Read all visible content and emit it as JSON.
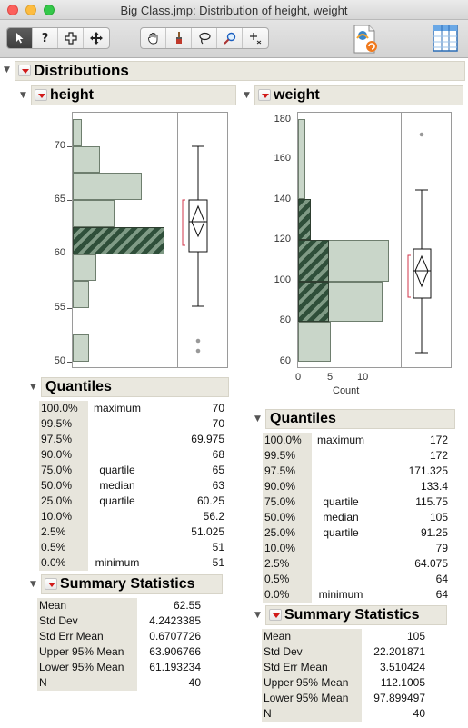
{
  "window": {
    "title": "Big Class.jmp: Distribution of height, weight"
  },
  "toolbar": {
    "tools": [
      {
        "name": "arrow-tool",
        "glyph": "▲"
      },
      {
        "name": "help-tool",
        "glyph": "?"
      },
      {
        "name": "selection-tool",
        "glyph": "✚"
      },
      {
        "name": "move-tool",
        "glyph": "✥"
      },
      {
        "name": "grabber-tool",
        "glyph": "✋"
      },
      {
        "name": "brush-tool",
        "glyph": "✐"
      },
      {
        "name": "lasso-tool",
        "glyph": "➰"
      },
      {
        "name": "magnifier-tool",
        "glyph": "⌕"
      },
      {
        "name": "crosshair-tool",
        "glyph": "+"
      }
    ]
  },
  "report": {
    "title": "Distributions"
  },
  "height": {
    "title": "height",
    "axis_ticks": [
      "70",
      "65",
      "60",
      "55",
      "50"
    ],
    "quantiles_title": "Quantiles",
    "quantiles": [
      {
        "pct": "100.0%",
        "label": "maximum",
        "value": "70"
      },
      {
        "pct": "99.5%",
        "label": "",
        "value": "70"
      },
      {
        "pct": "97.5%",
        "label": "",
        "value": "69.975"
      },
      {
        "pct": "90.0%",
        "label": "",
        "value": "68"
      },
      {
        "pct": "75.0%",
        "label": "quartile",
        "value": "65"
      },
      {
        "pct": "50.0%",
        "label": "median",
        "value": "63"
      },
      {
        "pct": "25.0%",
        "label": "quartile",
        "value": "60.25"
      },
      {
        "pct": "10.0%",
        "label": "",
        "value": "56.2"
      },
      {
        "pct": "2.5%",
        "label": "",
        "value": "51.025"
      },
      {
        "pct": "0.5%",
        "label": "",
        "value": "51"
      },
      {
        "pct": "0.0%",
        "label": "minimum",
        "value": "51"
      }
    ],
    "summary_title": "Summary Statistics",
    "summary": [
      {
        "label": "Mean",
        "value": "62.55"
      },
      {
        "label": "Std Dev",
        "value": "4.2423385"
      },
      {
        "label": "Std Err Mean",
        "value": "0.6707726"
      },
      {
        "label": "Upper 95% Mean",
        "value": "63.906766"
      },
      {
        "label": "Lower 95% Mean",
        "value": "61.193234"
      },
      {
        "label": "N",
        "value": "40"
      }
    ]
  },
  "weight": {
    "title": "weight",
    "axis_ticks": [
      "180",
      "160",
      "140",
      "120",
      "100",
      "80",
      "60"
    ],
    "count_ticks": [
      "0",
      "5",
      "10"
    ],
    "count_label": "Count",
    "quantiles_title": "Quantiles",
    "quantiles": [
      {
        "pct": "100.0%",
        "label": "maximum",
        "value": "172"
      },
      {
        "pct": "99.5%",
        "label": "",
        "value": "172"
      },
      {
        "pct": "97.5%",
        "label": "",
        "value": "171.325"
      },
      {
        "pct": "90.0%",
        "label": "",
        "value": "133.4"
      },
      {
        "pct": "75.0%",
        "label": "quartile",
        "value": "115.75"
      },
      {
        "pct": "50.0%",
        "label": "median",
        "value": "105"
      },
      {
        "pct": "25.0%",
        "label": "quartile",
        "value": "91.25"
      },
      {
        "pct": "10.0%",
        "label": "",
        "value": "79"
      },
      {
        "pct": "2.5%",
        "label": "",
        "value": "64.075"
      },
      {
        "pct": "0.5%",
        "label": "",
        "value": "64"
      },
      {
        "pct": "0.0%",
        "label": "minimum",
        "value": "64"
      }
    ],
    "summary_title": "Summary Statistics",
    "summary": [
      {
        "label": "Mean",
        "value": "105"
      },
      {
        "label": "Std Dev",
        "value": "22.201871"
      },
      {
        "label": "Std Err Mean",
        "value": "3.510424"
      },
      {
        "label": "Upper 95% Mean",
        "value": "112.1005"
      },
      {
        "label": "Lower 95% Mean",
        "value": "97.899497"
      },
      {
        "label": "N",
        "value": "40"
      }
    ]
  },
  "colors": {
    "bar_fill": "#c9d6c9",
    "bar_selected": "#2f4f3a",
    "header_bg": "#eae8df",
    "menu_triangle": "#d11a1a",
    "ci_bracket": "#d0344a"
  }
}
